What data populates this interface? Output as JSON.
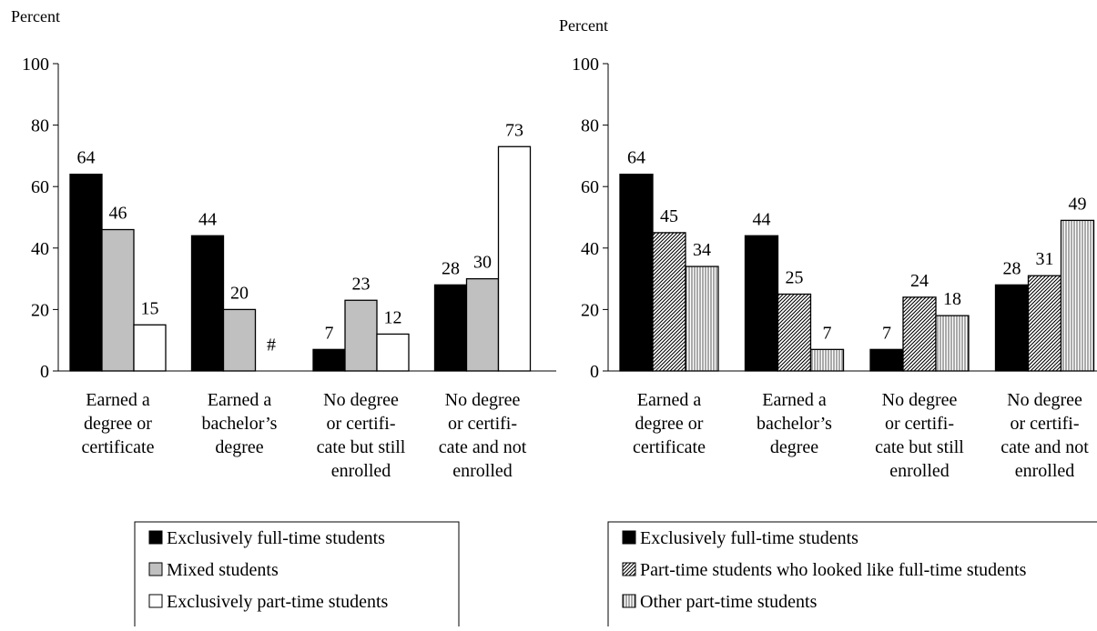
{
  "chart_data": [
    {
      "type": "bar",
      "ylabel": "Percent",
      "ylim": [
        0,
        100
      ],
      "yticks": [
        0,
        20,
        40,
        60,
        80,
        100
      ],
      "categories": [
        [
          "Earned a",
          "degree or",
          "certificate"
        ],
        [
          "Earned a",
          "bachelor’s",
          "degree"
        ],
        [
          "No degree",
          "or certifi-",
          "cate but still",
          "enrolled"
        ],
        [
          "No degree",
          "or certifi-",
          "cate and not",
          "enrolled"
        ]
      ],
      "series": [
        {
          "name": "Exclusively full-time students",
          "values": [
            64,
            44,
            7,
            28
          ],
          "labels": [
            "64",
            "44",
            "7",
            "28"
          ],
          "fill": "#000000"
        },
        {
          "name": "Mixed students",
          "values": [
            46,
            20,
            23,
            30
          ],
          "labels": [
            "46",
            "20",
            "23",
            "30"
          ],
          "fill": "#c0c0c0"
        },
        {
          "name": "Exclusively part-time students",
          "values": [
            15,
            0,
            12,
            73
          ],
          "labels": [
            "15",
            "#",
            "12",
            "73"
          ],
          "fill": "#ffffff"
        }
      ],
      "legend_position": "bottom",
      "grid": false
    },
    {
      "type": "bar",
      "ylabel": "Percent",
      "ylim": [
        0,
        100
      ],
      "yticks": [
        0,
        20,
        40,
        60,
        80,
        100
      ],
      "categories": [
        [
          "Earned a",
          "degree or",
          "certificate"
        ],
        [
          "Earned a",
          "bachelor’s",
          "degree"
        ],
        [
          "No degree",
          "or certifi-",
          "cate but still",
          "enrolled"
        ],
        [
          "No degree",
          "or certifi-",
          "cate and not",
          "enrolled"
        ]
      ],
      "series": [
        {
          "name": "Exclusively full-time students",
          "values": [
            64,
            44,
            7,
            28
          ],
          "labels": [
            "64",
            "44",
            "7",
            "28"
          ],
          "fill": "#000000"
        },
        {
          "name": "Part-time students who looked like full-time students",
          "values": [
            45,
            25,
            24,
            31
          ],
          "labels": [
            "45",
            "25",
            "24",
            "31"
          ],
          "fill": "pattern-diagonal"
        },
        {
          "name": "Other part-time students",
          "values": [
            34,
            7,
            18,
            49
          ],
          "labels": [
            "34",
            "7",
            "18",
            "49"
          ],
          "fill": "pattern-vertical"
        }
      ],
      "legend_position": "bottom",
      "grid": false
    }
  ]
}
